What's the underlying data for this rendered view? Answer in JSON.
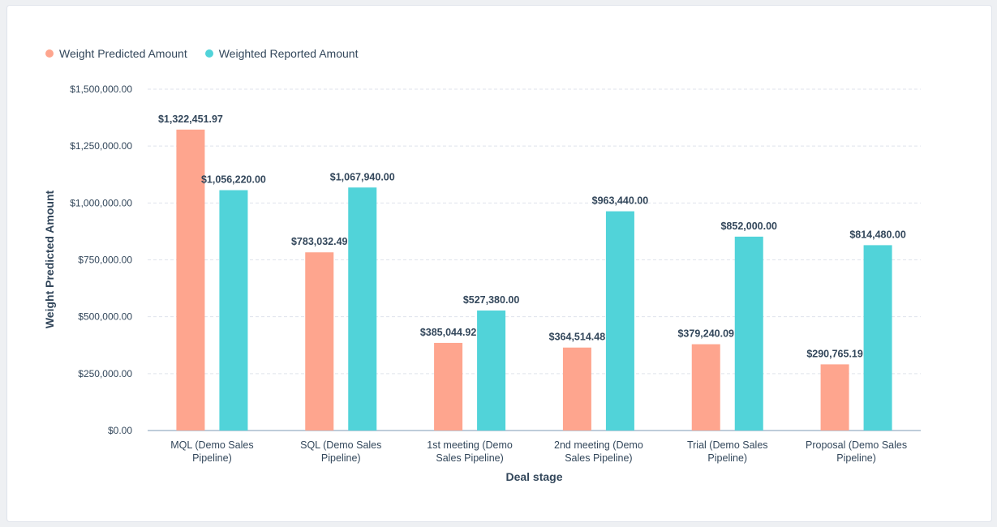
{
  "chart_data": {
    "type": "bar",
    "title": "",
    "xlabel": "Deal stage",
    "ylabel": "Weight Predicted Amount",
    "ylim": [
      0,
      1500000
    ],
    "yticks": [
      0,
      250000,
      500000,
      750000,
      1000000,
      1250000,
      1500000
    ],
    "ytick_labels": [
      "$0.00",
      "$250,000.00",
      "$500,000.00",
      "$750,000.00",
      "$1,000,000.00",
      "$1,250,000.00",
      "$1,500,000.00"
    ],
    "grid": true,
    "legend": "top-left",
    "categories": [
      [
        "MQL (Demo Sales",
        "Pipeline)"
      ],
      [
        "SQL (Demo Sales",
        "Pipeline)"
      ],
      [
        "1st meeting (Demo",
        "Sales Pipeline)"
      ],
      [
        "2nd meeting (Demo",
        "Sales Pipeline)"
      ],
      [
        "Trial (Demo Sales",
        "Pipeline)"
      ],
      [
        "Proposal (Demo Sales",
        "Pipeline)"
      ]
    ],
    "series": [
      {
        "name": "Weight Predicted Amount",
        "color": "#fea58e",
        "values": [
          1322451.97,
          783032.49,
          385044.92,
          364514.48,
          379240.09,
          290765.19
        ],
        "labels": [
          "$1,322,451.97",
          "$783,032.49",
          "$385,044.92",
          "$364,514.48",
          "$379,240.09",
          "$290,765.19"
        ]
      },
      {
        "name": "Weighted Reported Amount",
        "color": "#51d3d9",
        "values": [
          1056220,
          1067940,
          527380,
          963440,
          852000,
          814480
        ],
        "labels": [
          "$1,056,220.00",
          "$1,067,940.00",
          "$527,380.00",
          "$963,440.00",
          "$852,000.00",
          "$814,480.00"
        ]
      }
    ]
  }
}
